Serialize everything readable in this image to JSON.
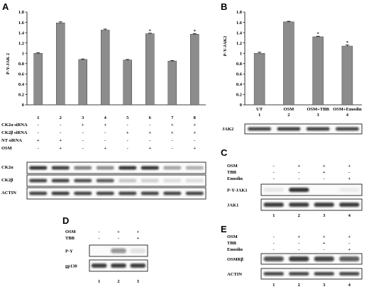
{
  "panel_labels": {
    "A": "A",
    "B": "B",
    "C": "C",
    "D": "D",
    "E": "E"
  },
  "chart_data": [
    {
      "type": "bar",
      "panel": "A",
      "ylabel": "P-Y-JAK 2",
      "ylim": [
        0,
        1.8
      ],
      "yticks": [
        "0",
        "0.2",
        "0.4",
        "0.6",
        "0.8",
        "1",
        "1.2",
        "1.4",
        "1.6",
        "1.8"
      ],
      "categories": [
        "1",
        "2",
        "3",
        "4",
        "5",
        "6",
        "7",
        "8"
      ],
      "values": [
        1.0,
        1.59,
        0.88,
        1.45,
        0.87,
        1.38,
        0.85,
        1.37
      ],
      "errors": [
        0.01,
        0.02,
        0.01,
        0.02,
        0.01,
        0.01,
        0.01,
        0.01
      ],
      "annotations": [
        "",
        "",
        "",
        "",
        "",
        "*",
        "",
        "*"
      ],
      "color": "#8c8c8c"
    },
    {
      "type": "bar",
      "panel": "B",
      "ylabel": "P-Y-JAK2",
      "ylim": [
        0,
        1.8
      ],
      "yticks": [
        "0",
        "0.2",
        "0.4",
        "0.6",
        "0.8",
        "1",
        "1.2",
        "1.4",
        "1.6",
        "1.8"
      ],
      "categories": [
        "1",
        "2",
        "3",
        "4"
      ],
      "category_names": [
        "UT",
        "OSM",
        "OSM+TBB",
        "OSM+Emodin"
      ],
      "values": [
        1.0,
        1.61,
        1.32,
        1.14
      ],
      "errors": [
        0.02,
        0.01,
        0.01,
        0.02
      ],
      "annotations": [
        "",
        "",
        "*",
        "*"
      ],
      "color": "#8c8c8c"
    }
  ],
  "panelA_table": {
    "rows": [
      {
        "label": "CK2α siRNA",
        "cells": [
          "-",
          "-",
          "+",
          "+",
          "-",
          "-",
          "+",
          "+"
        ]
      },
      {
        "label": "CK2β siRNA",
        "cells": [
          "-",
          "-",
          "-",
          "-",
          "+",
          "+",
          "+",
          "+"
        ]
      },
      {
        "label": "NT siRNA",
        "cells": [
          "+",
          "+",
          "-",
          "-",
          "-",
          "-",
          "-",
          "-"
        ]
      },
      {
        "label": "OSM",
        "cells": [
          "-",
          "+",
          "-",
          "+",
          "-",
          "+",
          "-",
          "+"
        ]
      }
    ],
    "blots": [
      "CK2α",
      "CK2β",
      "ACTIN"
    ]
  },
  "panelB_blot": "JAK2",
  "panelC": {
    "rows": [
      {
        "label": "OSM",
        "cells": [
          "-",
          "+",
          "+",
          "+"
        ]
      },
      {
        "label": "TBB",
        "cells": [
          "-",
          "-",
          "+",
          "-"
        ]
      },
      {
        "label": "Emodin",
        "cells": [
          "-",
          "-",
          "-",
          "+"
        ]
      }
    ],
    "blots": [
      "P-Y-JAK1",
      "JAK1"
    ],
    "lanes": [
      "1",
      "2",
      "3",
      "4"
    ]
  },
  "panelD": {
    "rows": [
      {
        "label": "OSM",
        "cells": [
          "-",
          "+",
          "+"
        ]
      },
      {
        "label": "TBB",
        "cells": [
          "-",
          "-",
          "+"
        ]
      }
    ],
    "blots": [
      "P-Y",
      "gp130"
    ],
    "lanes": [
      "1",
      "2",
      "3"
    ]
  },
  "panelE": {
    "rows": [
      {
        "label": "OSM",
        "cells": [
          "-",
          "+",
          "+",
          "+"
        ]
      },
      {
        "label": "TBB",
        "cells": [
          "-",
          "-",
          "+",
          "-"
        ]
      },
      {
        "label": "Emodin",
        "cells": [
          "-",
          "-",
          "-",
          "+"
        ]
      }
    ],
    "blots": [
      "OSMRβ",
      "ACTIN"
    ],
    "lanes": [
      "1",
      "2",
      "3",
      "4"
    ]
  }
}
